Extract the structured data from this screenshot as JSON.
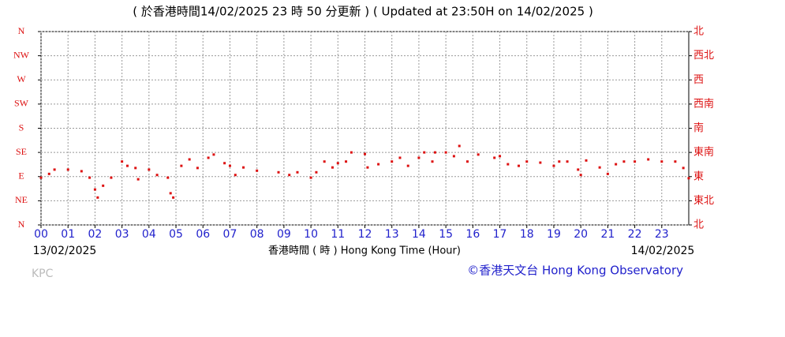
{
  "chart_data": {
    "type": "scatter",
    "title": "( 於香港時間14/02/2025 23 時 50 分更新 ) ( Updated at 23:50H on 14/02/2025 )",
    "x_label": "香港時間 ( 時 ) Hong Kong Time (Hour)",
    "start_date": "13/02/2025",
    "end_date": "14/02/2025",
    "station": "KPC",
    "credit": "©香港天文台 Hong Kong Observatory",
    "xlim": [
      0,
      24
    ],
    "xticks": [
      {
        "value": 0,
        "label": "00"
      },
      {
        "value": 1,
        "label": "01"
      },
      {
        "value": 2,
        "label": "02"
      },
      {
        "value": 3,
        "label": "03"
      },
      {
        "value": 4,
        "label": "04"
      },
      {
        "value": 5,
        "label": "05"
      },
      {
        "value": 6,
        "label": "06"
      },
      {
        "value": 7,
        "label": "07"
      },
      {
        "value": 8,
        "label": "08"
      },
      {
        "value": 9,
        "label": "09"
      },
      10,
      11,
      12,
      13,
      14,
      15,
      16,
      17,
      18,
      19,
      20,
      21,
      22,
      23
    ],
    "ylim": [
      0,
      360
    ],
    "yticks": [
      {
        "value": 360,
        "label": "N"
      },
      {
        "value": 315,
        "label": "NW"
      },
      {
        "value": 270,
        "label": "W"
      },
      {
        "value": 225,
        "label": "SW"
      },
      {
        "value": 180,
        "label": "S"
      },
      {
        "value": 135,
        "label": "SE"
      },
      {
        "value": 90,
        "label": "E"
      },
      {
        "value": 45,
        "label": "NE"
      },
      {
        "value": 0,
        "label": "N"
      }
    ],
    "y2lim": [
      0,
      360
    ],
    "y2ticks": [
      {
        "value": 360,
        "label": "北"
      },
      {
        "value": 315,
        "label": "西北"
      },
      {
        "value": 270,
        "label": "西"
      },
      {
        "value": 225,
        "label": "西南"
      },
      {
        "value": 180,
        "label": "南"
      },
      {
        "value": 135,
        "label": "東南"
      },
      {
        "value": 90,
        "label": "東"
      },
      {
        "value": 45,
        "label": "東北"
      },
      {
        "value": 0,
        "label": "北"
      }
    ],
    "grid": true,
    "color": "#dd1111",
    "x": [
      0,
      0.3,
      0.5,
      1.0,
      1.5,
      1.8,
      2.0,
      2.1,
      2.3,
      2.6,
      3.0,
      3.2,
      3.5,
      3.6,
      4.0,
      4.3,
      4.7,
      4.8,
      4.9,
      5.2,
      5.5,
      5.8,
      6.2,
      6.4,
      6.8,
      7.0,
      7.2,
      7.5,
      8.0,
      8.8,
      9.2,
      9.5,
      10.0,
      10.2,
      10.5,
      10.8,
      11.0,
      11.3,
      11.5,
      12.0,
      12.1,
      12.5,
      13.0,
      13.3,
      13.6,
      14.0,
      14.2,
      14.5,
      14.6,
      15.0,
      15.3,
      15.5,
      15.8,
      16.2,
      16.8,
      17.0,
      17.3,
      17.7,
      18.0,
      18.5,
      19.0,
      19.2,
      19.5,
      19.9,
      20.0,
      20.2,
      20.7,
      21.0,
      21.3,
      21.6,
      22.0,
      22.5,
      23.0,
      23.5,
      23.8,
      24.0
    ],
    "values": [
      88,
      95,
      103,
      103,
      100,
      88,
      66,
      51,
      73,
      88,
      118,
      110,
      106,
      85,
      103,
      93,
      88,
      59,
      51,
      110,
      122,
      106,
      125,
      131,
      115,
      110,
      93,
      107,
      101,
      98,
      93,
      98,
      88,
      98,
      118,
      107,
      115,
      118,
      135,
      132,
      107,
      113,
      118,
      125,
      110,
      125,
      135,
      118,
      135,
      135,
      128,
      147,
      118,
      131,
      125,
      128,
      113,
      110,
      118,
      116,
      110,
      118,
      118,
      103,
      93,
      120,
      107,
      95,
      113,
      118,
      118,
      122,
      118,
      118,
      106,
      87
    ]
  }
}
